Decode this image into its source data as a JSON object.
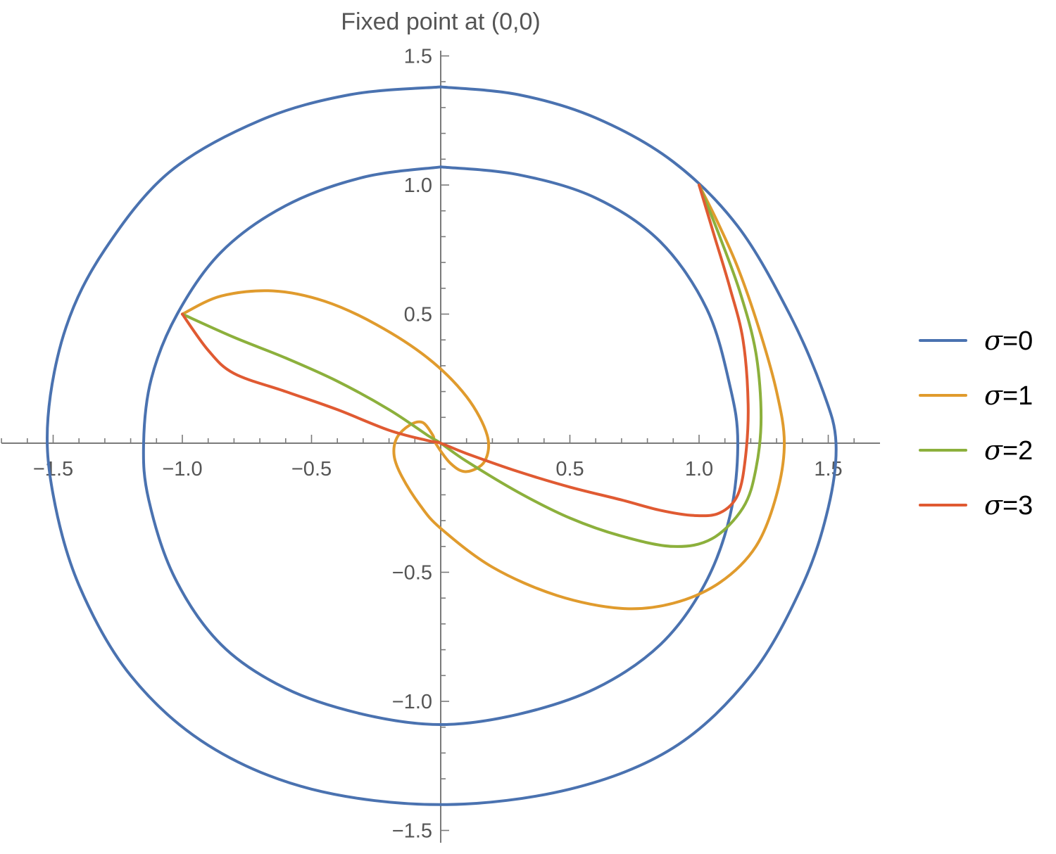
{
  "chart_data": {
    "type": "line",
    "title": "Fixed point at (0,0)",
    "xlabel": "",
    "ylabel": "",
    "xlim": [
      -1.7,
      1.7
    ],
    "ylim": [
      -1.55,
      1.55
    ],
    "grid": false,
    "legend_position": "right",
    "x_ticks": [
      -1.5,
      -1.0,
      -0.5,
      0.5,
      1.0,
      1.5
    ],
    "x_tick_labels": [
      "-1.5",
      "-1.0",
      "-0.5",
      "0.5",
      "1.0",
      "1.5"
    ],
    "y_ticks": [
      1.5,
      1.0,
      0.5,
      -0.5,
      -1.0,
      -1.5
    ],
    "y_tick_labels": [
      "1.5",
      "1.0",
      "0.5",
      "-0.5",
      "-1.0",
      "-1.5"
    ],
    "series": [
      {
        "name": "σ=0",
        "color": "#4a72b0",
        "paths": [
          [
            [
              0,
              1.38
            ],
            [
              0.3,
              1.35
            ],
            [
              0.6,
              1.26
            ],
            [
              0.9,
              1.09
            ],
            [
              1.15,
              0.84
            ],
            [
              1.35,
              0.5
            ],
            [
              1.48,
              0.2
            ],
            [
              1.53,
              0
            ],
            [
              1.5,
              -0.25
            ],
            [
              1.4,
              -0.55
            ],
            [
              1.2,
              -0.9
            ],
            [
              0.9,
              -1.18
            ],
            [
              0.5,
              -1.34
            ],
            [
              0,
              -1.4
            ],
            [
              -0.5,
              -1.34
            ],
            [
              -0.9,
              -1.17
            ],
            [
              -1.2,
              -0.9
            ],
            [
              -1.4,
              -0.55
            ],
            [
              -1.5,
              -0.2
            ],
            [
              -1.52,
              0.1
            ],
            [
              -1.45,
              0.45
            ],
            [
              -1.3,
              0.75
            ],
            [
              -1.05,
              1.05
            ],
            [
              -0.7,
              1.25
            ],
            [
              -0.35,
              1.35
            ],
            [
              0,
              1.38
            ]
          ],
          [
            [
              0,
              1.07
            ],
            [
              0.3,
              1.04
            ],
            [
              0.6,
              0.95
            ],
            [
              0.85,
              0.78
            ],
            [
              1.03,
              0.52
            ],
            [
              1.12,
              0.22
            ],
            [
              1.15,
              0
            ],
            [
              1.12,
              -0.28
            ],
            [
              1.02,
              -0.55
            ],
            [
              0.85,
              -0.78
            ],
            [
              0.6,
              -0.95
            ],
            [
              0.3,
              -1.05
            ],
            [
              0,
              -1.09
            ],
            [
              -0.3,
              -1.05
            ],
            [
              -0.6,
              -0.95
            ],
            [
              -0.85,
              -0.78
            ],
            [
              -1.03,
              -0.52
            ],
            [
              -1.13,
              -0.22
            ],
            [
              -1.15,
              0
            ],
            [
              -1.12,
              0.25
            ],
            [
              -1.02,
              0.5
            ],
            [
              -0.85,
              0.74
            ],
            [
              -0.6,
              0.92
            ],
            [
              -0.3,
              1.03
            ],
            [
              0,
              1.07
            ]
          ]
        ]
      },
      {
        "name": "σ=1",
        "color": "#e09b2d",
        "paths": [
          [
            [
              -1.0,
              0.5
            ],
            [
              -0.85,
              0.57
            ],
            [
              -0.65,
              0.59
            ],
            [
              -0.45,
              0.55
            ],
            [
              -0.25,
              0.46
            ],
            [
              -0.05,
              0.33
            ],
            [
              0.1,
              0.18
            ],
            [
              0.18,
              0.03
            ],
            [
              0.17,
              -0.07
            ],
            [
              0.1,
              -0.11
            ],
            [
              0.04,
              -0.08
            ],
            [
              -0.02,
              0.0
            ],
            [
              -0.03,
              0.03
            ],
            [
              -0.07,
              0.08
            ],
            [
              -0.12,
              0.07
            ],
            [
              -0.17,
              0.02
            ],
            [
              -0.18,
              -0.05
            ],
            [
              -0.15,
              -0.13
            ],
            [
              -0.08,
              -0.24
            ],
            [
              0.0,
              -0.33
            ],
            [
              0.2,
              -0.48
            ],
            [
              0.45,
              -0.59
            ],
            [
              0.7,
              -0.64
            ],
            [
              0.9,
              -0.62
            ],
            [
              1.08,
              -0.54
            ],
            [
              1.22,
              -0.4
            ],
            [
              1.3,
              -0.2
            ],
            [
              1.33,
              0.0
            ],
            [
              1.3,
              0.2
            ],
            [
              1.23,
              0.45
            ],
            [
              1.15,
              0.68
            ],
            [
              1.07,
              0.86
            ],
            [
              1.0,
              1.0
            ]
          ]
        ]
      },
      {
        "name": "σ=2",
        "color": "#8cb03c",
        "paths": [
          [
            [
              -1.0,
              0.5
            ],
            [
              -0.8,
              0.41
            ],
            [
              -0.6,
              0.33
            ],
            [
              -0.4,
              0.24
            ],
            [
              -0.2,
              0.13
            ],
            [
              -0.05,
              0.03
            ],
            [
              0.0,
              0.0
            ],
            [
              0.1,
              -0.07
            ],
            [
              0.3,
              -0.19
            ],
            [
              0.5,
              -0.29
            ],
            [
              0.7,
              -0.36
            ],
            [
              0.9,
              -0.4
            ],
            [
              1.05,
              -0.37
            ],
            [
              1.17,
              -0.25
            ],
            [
              1.22,
              -0.1
            ],
            [
              1.24,
              0.1
            ],
            [
              1.22,
              0.35
            ],
            [
              1.16,
              0.58
            ],
            [
              1.08,
              0.8
            ],
            [
              1.0,
              1.0
            ]
          ]
        ]
      },
      {
        "name": "σ=3",
        "color": "#e05a32",
        "paths": [
          [
            [
              -1.0,
              0.5
            ],
            [
              -0.9,
              0.36
            ],
            [
              -0.8,
              0.27
            ],
            [
              -0.6,
              0.2
            ],
            [
              -0.4,
              0.13
            ],
            [
              -0.2,
              0.05
            ],
            [
              -0.05,
              0.01
            ],
            [
              0.0,
              0.0
            ],
            [
              0.1,
              -0.04
            ],
            [
              0.3,
              -0.11
            ],
            [
              0.5,
              -0.17
            ],
            [
              0.7,
              -0.22
            ],
            [
              0.85,
              -0.26
            ],
            [
              0.98,
              -0.28
            ],
            [
              1.08,
              -0.27
            ],
            [
              1.15,
              -0.2
            ],
            [
              1.18,
              -0.05
            ],
            [
              1.19,
              0.15
            ],
            [
              1.17,
              0.4
            ],
            [
              1.12,
              0.6
            ],
            [
              1.06,
              0.8
            ],
            [
              1.0,
              1.0
            ]
          ]
        ]
      }
    ]
  }
}
